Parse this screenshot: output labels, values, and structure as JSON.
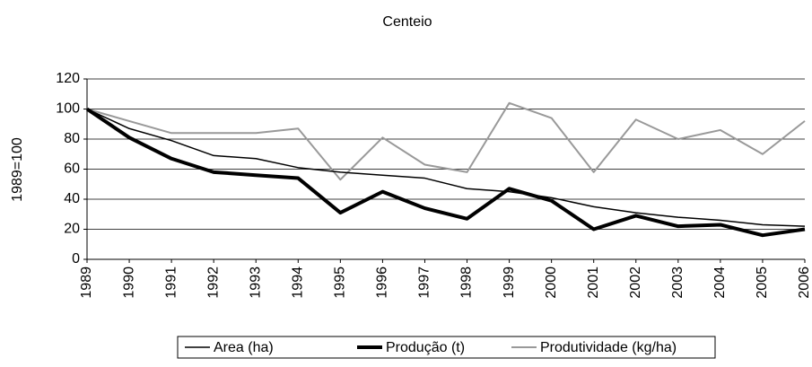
{
  "chart_data": {
    "type": "line",
    "title": "Centeio",
    "y_label": "1989=100",
    "categories": [
      "1989",
      "1990",
      "1991",
      "1992",
      "1993",
      "1994",
      "1995",
      "1996",
      "1997",
      "1998",
      "1999",
      "2000",
      "2001",
      "2002",
      "2003",
      "2004",
      "2005",
      "2006"
    ],
    "series": [
      {
        "name": "Area (ha)",
        "color": "#000000",
        "width": 1.5,
        "values": [
          100,
          87,
          79,
          69,
          67,
          61,
          58,
          56,
          54,
          47,
          45,
          41,
          35,
          31,
          28,
          26,
          23,
          22
        ]
      },
      {
        "name": "Produção (t)",
        "color": "#000000",
        "width": 4,
        "values": [
          100,
          81,
          67,
          58,
          56,
          54,
          31,
          45,
          34,
          27,
          47,
          39,
          20,
          29,
          22,
          23,
          16,
          20
        ]
      },
      {
        "name": "Produtividade (kg/ha)",
        "color": "#999999",
        "width": 2,
        "values": [
          100,
          92,
          84,
          84,
          84,
          87,
          53,
          81,
          63,
          58,
          104,
          94,
          58,
          93,
          80,
          86,
          70,
          92
        ]
      }
    ],
    "ylim": [
      0,
      120
    ],
    "yticks": [
      0,
      20,
      40,
      60,
      80,
      100,
      120
    ],
    "grid": true,
    "legend": "bottom"
  }
}
